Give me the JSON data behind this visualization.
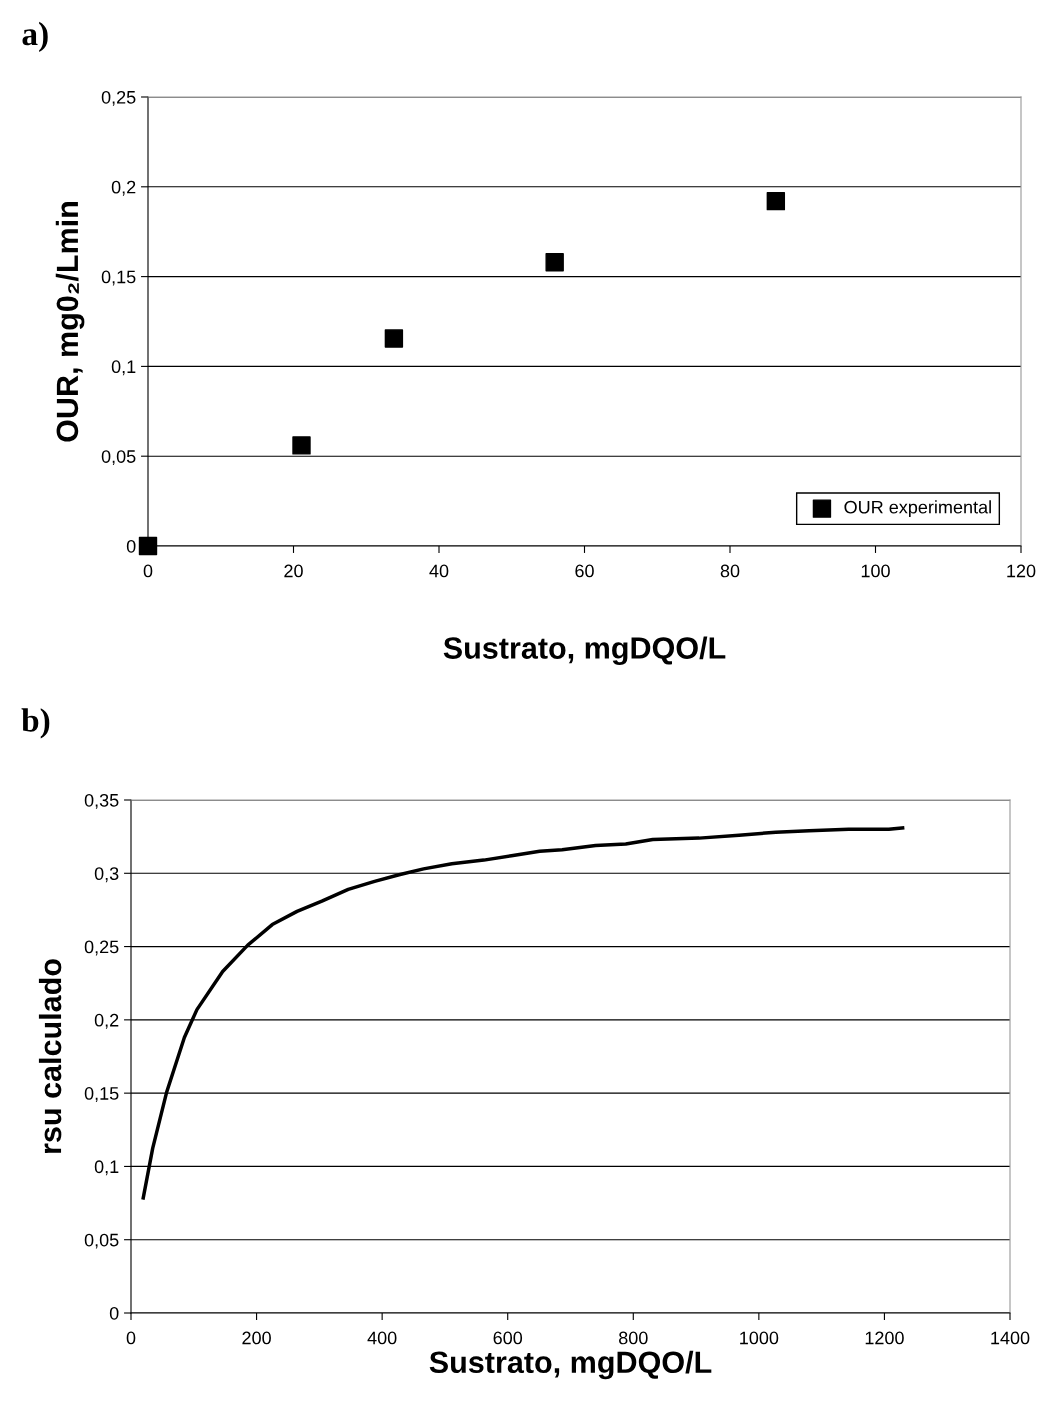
{
  "chart_data": [
    {
      "type": "scatter",
      "title": "a)",
      "xlabel": "Sustrato, mgDQO/L",
      "ylabel": "OUR, mg0₂/Lmin",
      "x": [
        0,
        21.1,
        33.8,
        55.9,
        86.3
      ],
      "series": [
        {
          "name": "OUR experimental",
          "color": "#000000",
          "values": [
            0,
            0.056,
            0.1155,
            0.158,
            0.192
          ]
        }
      ],
      "xlim": [
        0,
        120
      ],
      "xticks": [
        0,
        20,
        40,
        60,
        80,
        100,
        120
      ],
      "ylim": [
        0,
        0.25
      ],
      "yticks": [
        {
          "value": 0,
          "label": "0"
        },
        {
          "value": 0.05,
          "label": "0,05"
        },
        {
          "value": 0.1,
          "label": "0,1"
        },
        {
          "value": 0.15,
          "label": "0,15"
        },
        {
          "value": 0.2,
          "label": "0,2"
        },
        {
          "value": 0.25,
          "label": "0,25"
        }
      ],
      "grid": "y",
      "legend": "bottom right",
      "marker": "square"
    },
    {
      "type": "line",
      "title": "b)",
      "xlabel": "Sustrato, mgDQO/L",
      "ylabel": "rsu calculado",
      "x": [
        19.5,
        34.6,
        57,
        85,
        105,
        146,
        186,
        225,
        264.5,
        304,
        346,
        388,
        427,
        466,
        511,
        562,
        606,
        651,
        686.7,
        740,
        788,
        831,
        905,
        968.5,
        1027,
        1080,
        1143,
        1207,
        1229
      ],
      "series": [
        {
          "color": "#000000",
          "values": [
            0.0785,
            0.1125,
            0.151,
            0.188,
            0.207,
            0.233,
            0.251,
            0.265,
            0.274,
            0.281,
            0.289,
            0.2945,
            0.299,
            0.303,
            0.3065,
            0.309,
            0.312,
            0.315,
            0.316,
            0.319,
            0.32,
            0.323,
            0.324,
            0.326,
            0.328,
            0.329,
            0.33,
            0.33,
            0.331
          ]
        }
      ],
      "xlim": [
        0,
        1400
      ],
      "xticks": [
        0,
        200,
        400,
        600,
        800,
        1000,
        1200,
        1400
      ],
      "ylim": [
        0,
        0.35
      ],
      "yticks": [
        {
          "value": 0,
          "label": "0"
        },
        {
          "value": 0.05,
          "label": "0,05"
        },
        {
          "value": 0.1,
          "label": "0,1"
        },
        {
          "value": 0.15,
          "label": "0,15"
        },
        {
          "value": 0.2,
          "label": "0,2"
        },
        {
          "value": 0.25,
          "label": "0,25"
        },
        {
          "value": 0.3,
          "label": "0,3"
        },
        {
          "value": 0.35,
          "label": "0,35"
        }
      ],
      "grid": "y",
      "marker": "none",
      "line_style": "solid"
    }
  ]
}
